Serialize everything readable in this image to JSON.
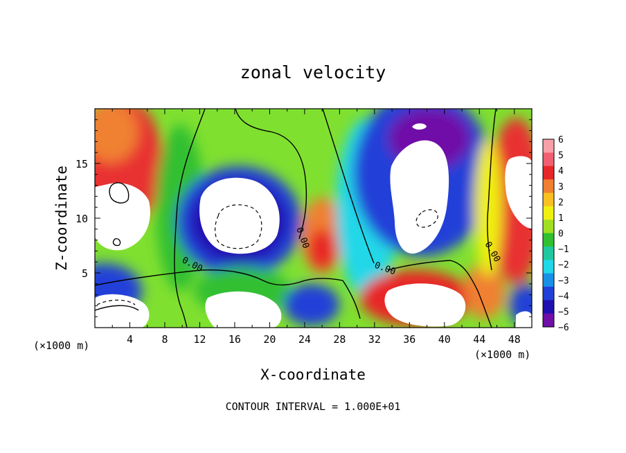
{
  "chart_data": {
    "type": "heatmap",
    "title": "zonal velocity",
    "xlabel": "X-coordinate",
    "ylabel": "Z-coordinate",
    "x_units": "(×1000 m)",
    "x_units_right": "(×1000 m)",
    "xlim": [
      0,
      50
    ],
    "ylim": [
      0,
      20
    ],
    "x_ticks": [
      4,
      8,
      12,
      16,
      20,
      24,
      28,
      32,
      36,
      40,
      44,
      48
    ],
    "y_ticks": [
      5,
      10,
      15
    ],
    "colorbar": {
      "ticks": [
        "6",
        "5",
        "4",
        "3",
        "2",
        "1",
        "0",
        "−1",
        "−2",
        "−3",
        "−4",
        "−5",
        "−6"
      ],
      "range": [
        -6,
        6
      ],
      "colors": [
        "#f8a0a8",
        "#f06070",
        "#e82828",
        "#f08030",
        "#f8c020",
        "#f0f010",
        "#a0e020",
        "#30c030",
        "#20c8a0",
        "#20d8e8",
        "#1890e8",
        "#2040d8",
        "#2010b0",
        "#7010a8"
      ]
    },
    "contour_labels": [
      "0.00",
      "0.00",
      "0.00",
      "0.00"
    ],
    "contour_interval": "CONTOUR INTERVAL = 1.000E+01"
  }
}
